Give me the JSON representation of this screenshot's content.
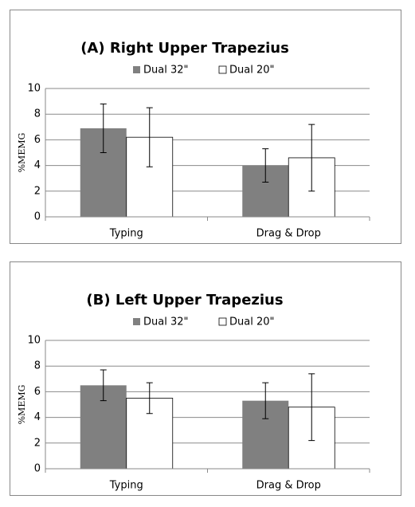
{
  "chart_data": [
    {
      "type": "bar",
      "title": "(A) Right Upper Trapezius",
      "y_label": "%MEMG",
      "categories": [
        "Typing",
        "Drag & Drop"
      ],
      "series": [
        {
          "name": "Dual 32\"",
          "color": "#808080",
          "values": [
            6.9,
            4.0
          ],
          "errors": [
            1.9,
            1.3
          ]
        },
        {
          "name": "Dual 20\"",
          "color": "#ffffff",
          "values": [
            6.2,
            4.6
          ],
          "errors": [
            2.3,
            2.6
          ]
        }
      ],
      "ylim": [
        0,
        10
      ],
      "yticks": [
        0,
        2,
        4,
        6,
        8,
        10
      ],
      "grid": true,
      "legend": "top"
    },
    {
      "type": "bar",
      "title": "(B) Left Upper Trapezius",
      "y_label": "%MEMG",
      "categories": [
        "Typing",
        "Drag & Drop"
      ],
      "series": [
        {
          "name": "Dual 32\"",
          "color": "#808080",
          "values": [
            6.5,
            5.3
          ],
          "errors": [
            1.2,
            1.4
          ]
        },
        {
          "name": "Dual 20\"",
          "color": "#ffffff",
          "values": [
            5.5,
            4.8
          ],
          "errors": [
            1.2,
            2.6
          ]
        }
      ],
      "ylim": [
        0,
        10
      ],
      "yticks": [
        0,
        2,
        4,
        6,
        8,
        10
      ],
      "grid": true,
      "legend": "top"
    }
  ]
}
